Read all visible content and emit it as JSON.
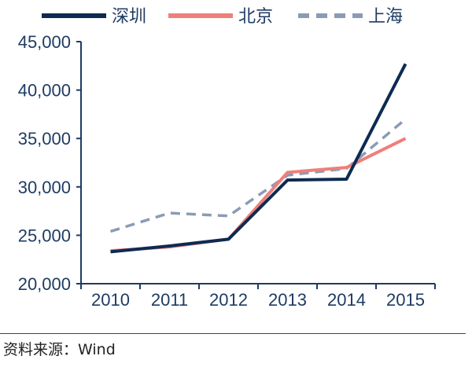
{
  "chart_data": {
    "type": "line",
    "title": "",
    "xlabel": "",
    "ylabel": "",
    "categories": [
      "2010",
      "2011",
      "2012",
      "2013",
      "2014",
      "2015"
    ],
    "ylim": [
      20000,
      45000
    ],
    "yticks": [
      "20,000",
      "25,000",
      "30,000",
      "35,000",
      "40,000",
      "45,000"
    ],
    "grid": false,
    "legend_position": "top",
    "series": [
      {
        "name": "深圳",
        "color": "#0d2b52",
        "style": "solid",
        "values": [
          23300,
          23900,
          24600,
          30700,
          30800,
          42700
        ]
      },
      {
        "name": "北京",
        "color": "#ef7f7a",
        "style": "solid",
        "values": [
          23400,
          23800,
          24600,
          31500,
          32000,
          35000
        ]
      },
      {
        "name": "上海",
        "color": "#8a9bb5",
        "style": "dashed",
        "values": [
          25400,
          27300,
          27000,
          31200,
          31900,
          37000
        ]
      }
    ]
  },
  "footer": {
    "source": "资料来源：Wind"
  }
}
